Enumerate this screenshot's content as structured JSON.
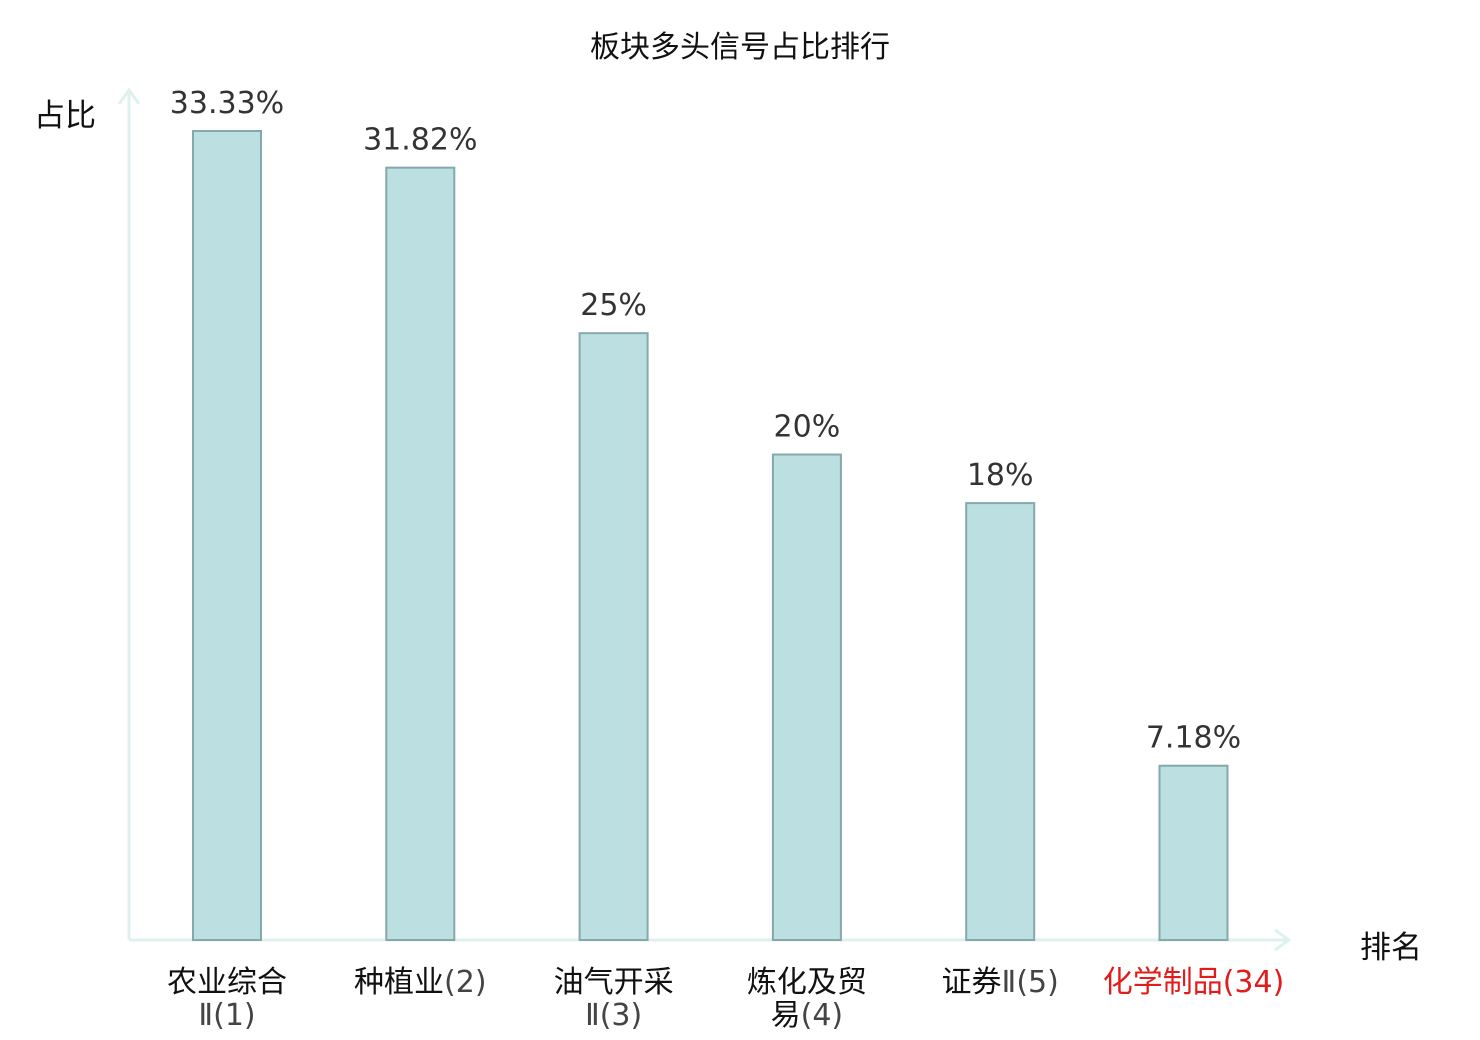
{
  "chart_data": {
    "type": "bar",
    "title": "板块多头信号占比排行",
    "ylabel": "占比",
    "xlabel": "排名",
    "categories": [
      {
        "name": "农业综合",
        "suffix": "Ⅱ",
        "rank": "(1)",
        "highlight": false
      },
      {
        "name": "种植业",
        "suffix": "",
        "rank": "(2)",
        "highlight": false
      },
      {
        "name": "油气开采",
        "suffix": "Ⅱ",
        "rank": "(3)",
        "highlight": false
      },
      {
        "name": "炼化及贸易",
        "suffix": "",
        "rank": "(4)",
        "highlight": false
      },
      {
        "name": "证券",
        "suffix": "Ⅱ",
        "rank": "(5)",
        "highlight": false
      },
      {
        "name": "化学制品",
        "suffix": "",
        "rank": "(34)",
        "highlight": true
      }
    ],
    "values": [
      33.33,
      31.82,
      25,
      20,
      18,
      7.18
    ],
    "value_labels": [
      "33.33%",
      "31.82%",
      "25%",
      "20%",
      "18%",
      "7.18%"
    ],
    "ylim": [
      0,
      33.33
    ],
    "grid": false,
    "legend": "none",
    "colors": {
      "bar_fill": "#bce0e2",
      "bar_stroke": "#85a8aa",
      "axis": "#dff1ee",
      "label": "#333333",
      "highlight": "#e21b1b"
    }
  }
}
